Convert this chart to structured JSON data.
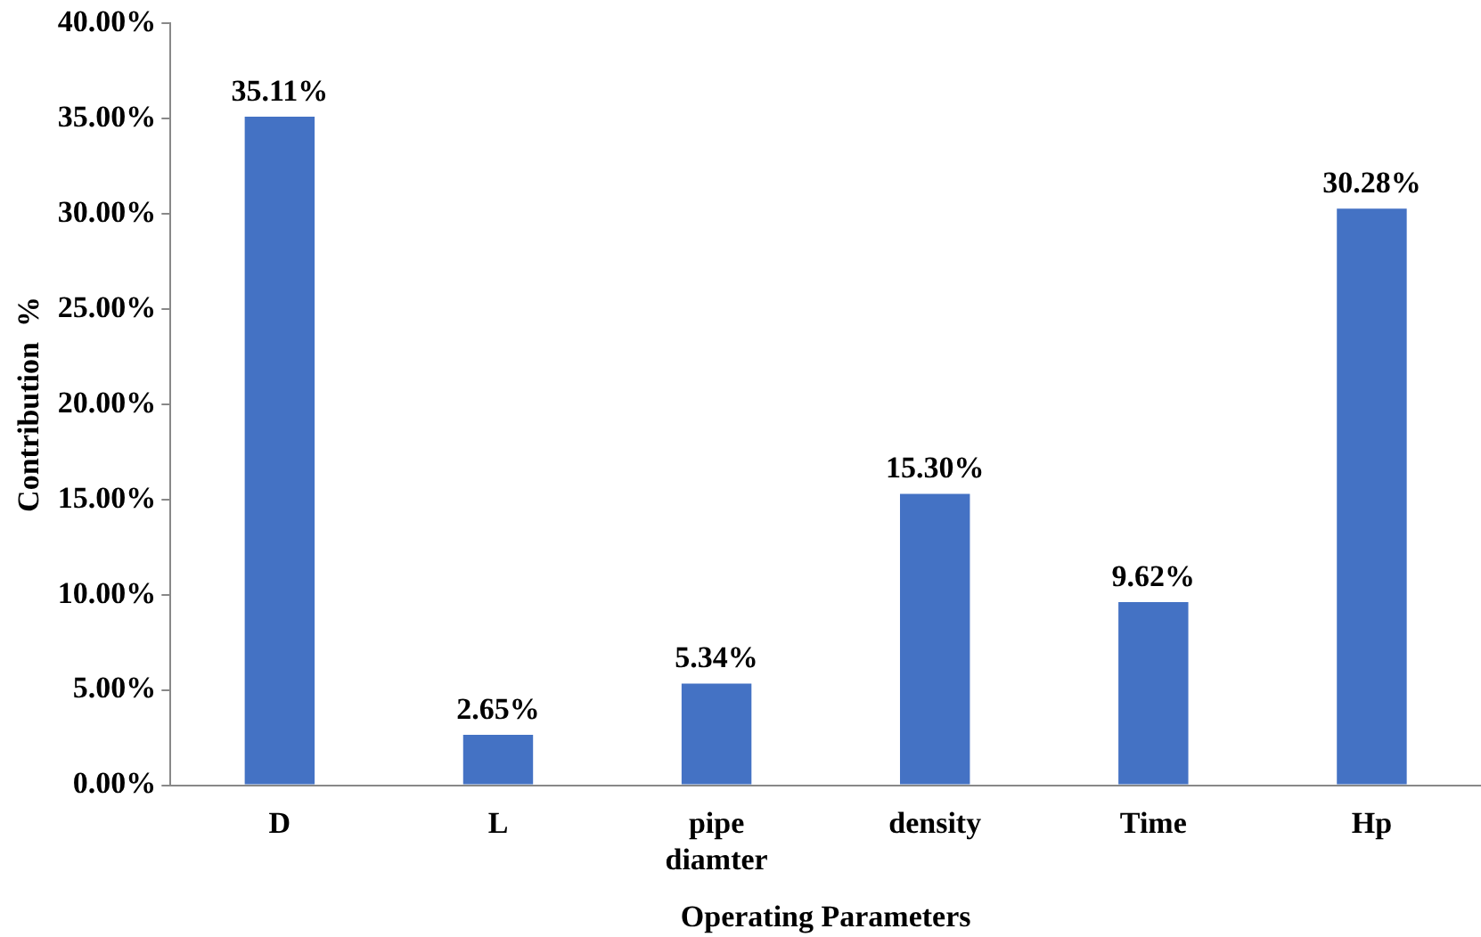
{
  "chart_data": {
    "type": "bar",
    "xlabel": "Operating Parameters",
    "ylabel": "Contribution  %",
    "categories": [
      "D",
      "L",
      "pipe diamter",
      "density",
      "Time",
      "Hp"
    ],
    "values": [
      35.11,
      2.65,
      5.34,
      15.3,
      9.62,
      30.28
    ],
    "value_labels": [
      "35.11%",
      "2.65%",
      "5.34%",
      "15.30%",
      "9.62%",
      "30.28%"
    ],
    "color": "#4472c4",
    "ylim": [
      0,
      40
    ],
    "yticks": [
      {
        "value": 0,
        "label": "0.00%"
      },
      {
        "value": 5,
        "label": "5.00%"
      },
      {
        "value": 10,
        "label": "10.00%"
      },
      {
        "value": 15,
        "label": "15.00%"
      },
      {
        "value": 20,
        "label": "20.00%"
      },
      {
        "value": 25,
        "label": "25.00%"
      },
      {
        "value": 30,
        "label": "30.00%"
      },
      {
        "value": 35,
        "label": "35.00%"
      },
      {
        "value": 40,
        "label": "40.00%"
      }
    ],
    "grid": false,
    "legend": false
  }
}
